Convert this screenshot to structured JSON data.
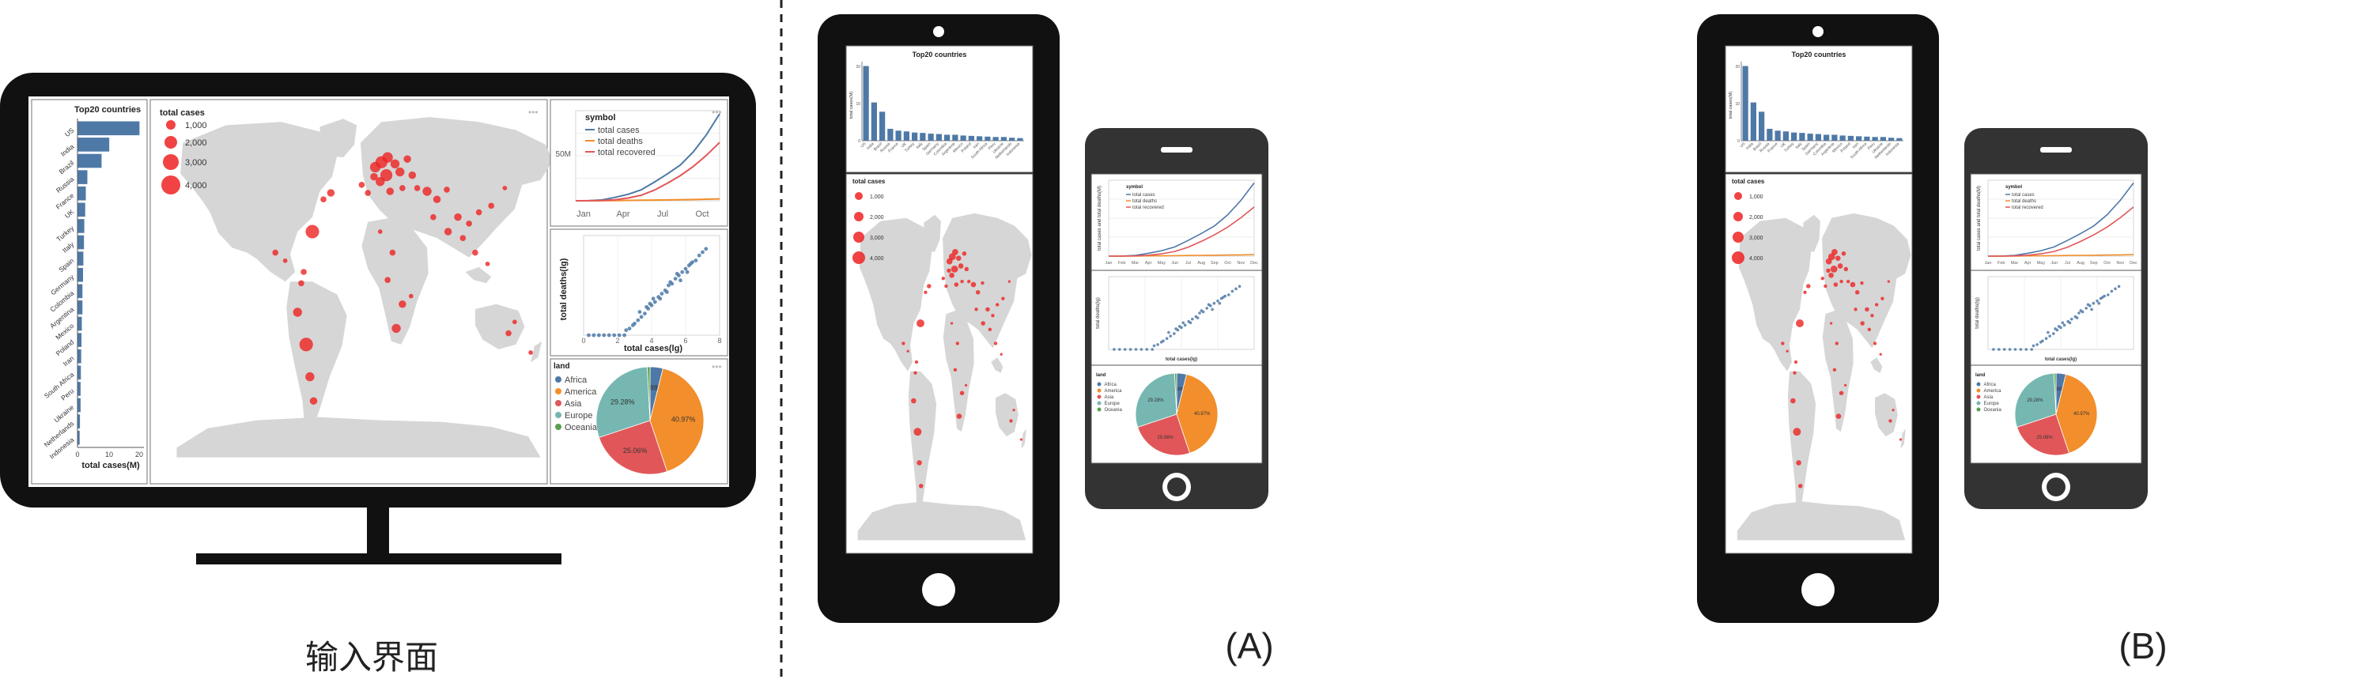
{
  "captions": {
    "input": "输入界面",
    "a": "(A)",
    "b": "(B)"
  },
  "colors": {
    "accent": "#4e79a7",
    "bubble": "#ee2222",
    "land": "#d6d6d6",
    "africa": "#4e79a7",
    "america": "#f28e2b",
    "asia": "#e15759",
    "europe": "#76b7b2",
    "oceania": "#59a14f"
  },
  "bar_chart": {
    "title": "Top20 countries",
    "xlabel": "total cases(M)",
    "ylabel": "total cases(M)",
    "xticks": [
      "0",
      "10",
      "20"
    ],
    "yticks": [
      "20",
      "10",
      "0"
    ],
    "countries": [
      "US",
      "India",
      "Brazil",
      "Russia",
      "France",
      "UK",
      "Turkey",
      "Italy",
      "Spain",
      "Germany",
      "Colombia",
      "Argentina",
      "Mexico",
      "Poland",
      "Iran",
      "South Africa",
      "Peru",
      "Ukraine",
      "Netherlands",
      "Indonesia"
    ],
    "values": [
      20.1,
      10.3,
      7.8,
      3.2,
      2.7,
      2.5,
      2.2,
      2.1,
      1.9,
      1.8,
      1.6,
      1.6,
      1.4,
      1.3,
      1.2,
      1.1,
      1.0,
      1.0,
      0.8,
      0.7
    ]
  },
  "bubble_legend": {
    "title": "total cases",
    "labels": [
      "1,000",
      "2,000",
      "3,000",
      "4,000"
    ]
  },
  "line_chart": {
    "legend_title": "symbol",
    "series": [
      "total cases",
      "total deaths",
      "total recovered"
    ],
    "ylabel": "total cases and total deaths(M)",
    "ytick": "50M",
    "months_desktop": [
      "Jan",
      "Apr",
      "Jul",
      "Oct"
    ],
    "months_mobile": [
      "Jan",
      "Feb",
      "Mar",
      "Apr",
      "May",
      "Jun",
      "Jul",
      "Aug",
      "Sep",
      "Oct",
      "Nov",
      "Dec"
    ]
  },
  "scatter_chart": {
    "ylabel": "total deaths(lg)",
    "xlabel": "total cases(lg)",
    "xticks": [
      "0",
      "2",
      "4",
      "6",
      "8"
    ],
    "yticks": [
      "0",
      "2",
      "4"
    ]
  },
  "pie_chart": {
    "legend_title": "land",
    "labels": [
      "Africa",
      "America",
      "Asia",
      "Europe",
      "Oceania"
    ],
    "values": [
      3.88,
      40.97,
      25.06,
      29.28,
      0.81
    ],
    "pct_labels": [
      "3.88%",
      "40.97%",
      "25.06%",
      "29.28%"
    ]
  },
  "chart_data": [
    {
      "type": "bar",
      "title": "Top20 countries",
      "xlabel": "total cases(M)",
      "ylabel": "",
      "categories": [
        "US",
        "India",
        "Brazil",
        "Russia",
        "France",
        "UK",
        "Turkey",
        "Italy",
        "Spain",
        "Germany",
        "Colombia",
        "Argentina",
        "Mexico",
        "Poland",
        "Iran",
        "South Africa",
        "Peru",
        "Ukraine",
        "Netherlands",
        "Indonesia"
      ],
      "values": [
        20.1,
        10.3,
        7.8,
        3.2,
        2.7,
        2.5,
        2.2,
        2.1,
        1.9,
        1.8,
        1.6,
        1.6,
        1.4,
        1.3,
        1.2,
        1.1,
        1.0,
        1.0,
        0.8,
        0.7
      ],
      "xlim": [
        0,
        20
      ]
    },
    {
      "type": "line",
      "title": "",
      "xlabel": "",
      "ylabel": "total cases and total deaths(M)",
      "categories": [
        "Jan",
        "Feb",
        "Mar",
        "Apr",
        "May",
        "Jun",
        "Jul",
        "Aug",
        "Sep",
        "Oct",
        "Nov",
        "Dec"
      ],
      "series": [
        {
          "name": "total cases",
          "values": [
            0,
            0.1,
            0.8,
            3.2,
            6.1,
            10.3,
            17.5,
            25.3,
            33.8,
            46.2,
            62.5,
            82.0
          ]
        },
        {
          "name": "total deaths",
          "values": [
            0,
            0,
            0.04,
            0.23,
            0.37,
            0.51,
            0.68,
            0.85,
            1.01,
            1.2,
            1.46,
            1.8
          ]
        },
        {
          "name": "total recovered",
          "values": [
            0,
            0.05,
            0.3,
            1.0,
            2.6,
            5.2,
            10.0,
            16.5,
            23.8,
            32.5,
            43.0,
            55.0
          ]
        }
      ],
      "ylim": [
        0,
        85
      ]
    },
    {
      "type": "scatter",
      "xlabel": "total cases(lg)",
      "ylabel": "total deaths(lg)",
      "xlim": [
        0,
        8
      ],
      "ylim": [
        0,
        6
      ],
      "x": [
        0.3,
        0.6,
        0.9,
        1.2,
        1.5,
        1.8,
        2.1,
        2.4,
        2.7,
        3.0,
        3.2,
        3.4,
        3.6,
        3.8,
        4.0,
        4.2,
        4.4,
        4.6,
        4.8,
        5.0,
        5.2,
        5.4,
        5.6,
        5.8,
        6.0,
        6.2,
        6.4,
        6.6,
        6.8,
        7.0,
        7.2,
        3.3,
        3.9,
        4.5,
        5.1,
        5.7,
        6.3,
        4.1,
        4.9,
        5.5,
        6.1,
        2.9,
        2.5,
        3.7
      ],
      "y": [
        0,
        0,
        0,
        0,
        0,
        0,
        0,
        0,
        0.4,
        0.7,
        0.9,
        1.1,
        1.3,
        1.6,
        1.8,
        2.0,
        2.3,
        2.5,
        2.7,
        3.0,
        3.1,
        3.4,
        3.6,
        3.8,
        4.0,
        4.2,
        4.4,
        4.5,
        4.8,
        5.0,
        5.2,
        1.4,
        1.9,
        2.2,
        3.2,
        3.3,
        4.3,
        2.2,
        2.6,
        3.7,
        3.8,
        0.6,
        0.3,
        1.7
      ]
    },
    {
      "type": "pie",
      "title": "",
      "legend_title": "land",
      "categories": [
        "Africa",
        "America",
        "Asia",
        "Europe",
        "Oceania"
      ],
      "values": [
        3.88,
        40.97,
        25.06,
        29.28,
        0.81
      ]
    }
  ]
}
